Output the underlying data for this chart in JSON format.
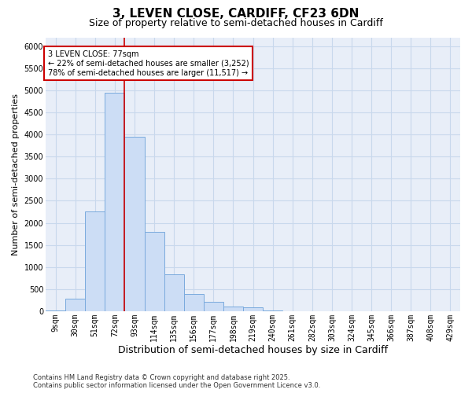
{
  "title": "3, LEVEN CLOSE, CARDIFF, CF23 6DN",
  "subtitle": "Size of property relative to semi-detached houses in Cardiff",
  "xlabel": "Distribution of semi-detached houses by size in Cardiff",
  "ylabel": "Number of semi-detached properties",
  "categories": [
    "9sqm",
    "30sqm",
    "51sqm",
    "72sqm",
    "93sqm",
    "114sqm",
    "135sqm",
    "156sqm",
    "177sqm",
    "198sqm",
    "219sqm",
    "240sqm",
    "261sqm",
    "282sqm",
    "303sqm",
    "324sqm",
    "345sqm",
    "366sqm",
    "387sqm",
    "408sqm",
    "429sqm"
  ],
  "values": [
    10,
    280,
    2250,
    4950,
    3950,
    1800,
    840,
    390,
    220,
    100,
    80,
    10,
    0,
    0,
    0,
    0,
    0,
    0,
    0,
    0,
    0
  ],
  "bar_color": "#ccddf5",
  "bar_edge_color": "#7aaadd",
  "highlight_line_color": "#cc0000",
  "vline_pos": 3.5,
  "annotation_text": "3 LEVEN CLOSE: 77sqm\n← 22% of semi-detached houses are smaller (3,252)\n78% of semi-detached houses are larger (11,517) →",
  "annotation_box_edge_color": "#cc0000",
  "ylim_max": 6200,
  "yticks": [
    0,
    500,
    1000,
    1500,
    2000,
    2500,
    3000,
    3500,
    4000,
    4500,
    5000,
    5500,
    6000
  ],
  "grid_color": "#c8d8ec",
  "plot_bg_color": "#e8eef8",
  "fig_bg_color": "#ffffff",
  "footnote": "Contains HM Land Registry data © Crown copyright and database right 2025.\nContains public sector information licensed under the Open Government Licence v3.0.",
  "title_fontsize": 11,
  "subtitle_fontsize": 9,
  "xlabel_fontsize": 9,
  "ylabel_fontsize": 8,
  "tick_fontsize": 7,
  "annot_fontsize": 7,
  "footnote_fontsize": 6
}
